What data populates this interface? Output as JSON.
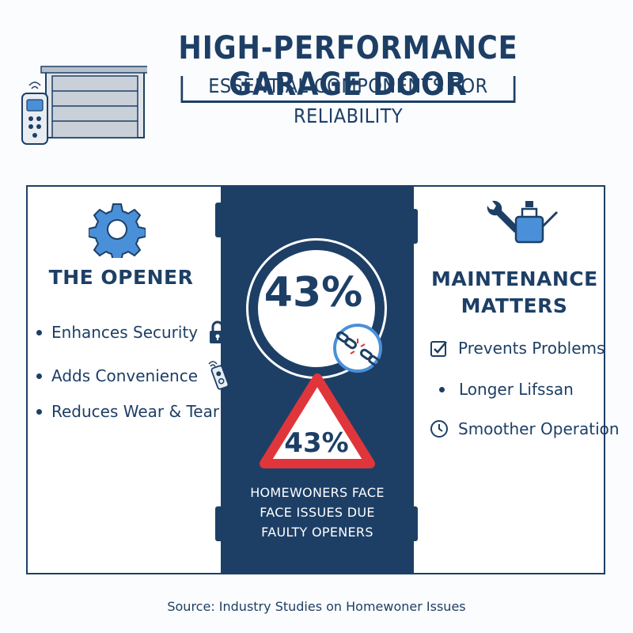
{
  "header": {
    "title": "HIGH-PERFORMANCE GARAGE DOOR",
    "subtitle": "ESSENTIAL COMPONENTS FOR RELIABILITY"
  },
  "left": {
    "title": "THE OPENER",
    "items": [
      {
        "label": "Enhances Security",
        "icon": "padlock-icon"
      },
      {
        "label": "Adds Convenience",
        "icon": "remote-icon"
      },
      {
        "label": "Reduces Wear & Tear",
        "icon": ""
      }
    ]
  },
  "center": {
    "stat_big": "43%",
    "stat_small": "43%",
    "caption_line1": "HOMEWONERS FACE",
    "caption_line2": "FACE ISSUES DUE",
    "caption_line3": "FAULTY OPENERS"
  },
  "right": {
    "title_line1": "MAINTENANCE",
    "title_line2": "MATTERS",
    "items": [
      {
        "label": "Prevents Problems",
        "icon": "checkbox-icon"
      },
      {
        "label": "Longer Lifssan",
        "icon": "bullet"
      },
      {
        "label": "Smoother Operation",
        "icon": "clock-icon"
      }
    ]
  },
  "footer": {
    "source": "Source: Industry Studies on Homewoner Issues"
  },
  "colors": {
    "navy": "#1d3f66",
    "accent_blue": "#4a90d9",
    "warning_red": "#e0363b"
  }
}
